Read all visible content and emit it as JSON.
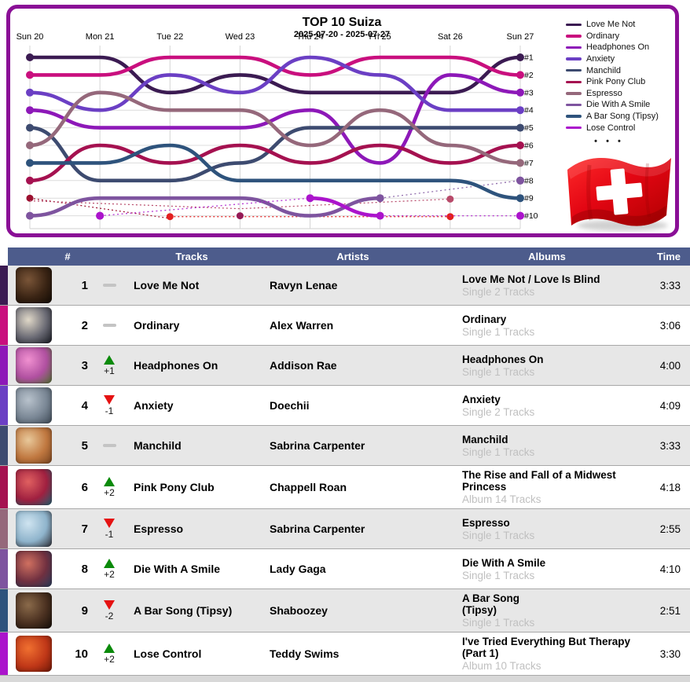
{
  "chart": {
    "title": "TOP 10 Suiza",
    "subtitle": "2025-07-20 - 2025-07-27",
    "ellipsis": "• • •",
    "panel_border_color": "#8a0f96",
    "flag": "swiss-flag"
  },
  "chart_data": {
    "type": "line",
    "variant": "bump-chart (rank over days, 1 = best, y inverted)",
    "title": "TOP 10 Suiza",
    "subtitle": "2025-07-20 - 2025-07-27",
    "x": [
      "Sun 20",
      "Mon 21",
      "Tue 22",
      "Wed 23",
      "Thu 24",
      "Fri 25",
      "Sat 26",
      "Sun 27"
    ],
    "position_labels": [
      "#1",
      "#2",
      "#3",
      "#4",
      "#5",
      "#6",
      "#7",
      "#8",
      "#9",
      "#10"
    ],
    "ylim": [
      1,
      10
    ],
    "grid": true,
    "legend_position": "top-right",
    "series": [
      {
        "name": "Love Me Not",
        "color": "#3b1b52",
        "positions": [
          1,
          1,
          3,
          2,
          3,
          3,
          3,
          1
        ]
      },
      {
        "name": "Ordinary",
        "color": "#c90f7e",
        "positions": [
          2,
          2,
          1,
          1,
          2,
          1,
          1,
          2
        ]
      },
      {
        "name": "Headphones On",
        "color": "#8d18b8",
        "positions": [
          4,
          5,
          5,
          5,
          4,
          7,
          2,
          3
        ]
      },
      {
        "name": "Anxiety",
        "color": "#6b3fc4",
        "positions": [
          3,
          4,
          2,
          3,
          1,
          2,
          4,
          4
        ]
      },
      {
        "name": "Manchild",
        "color": "#3d4b70",
        "positions": [
          5,
          8,
          8,
          7,
          5,
          5,
          5,
          5
        ]
      },
      {
        "name": "Pink Pony Club",
        "color": "#a51150",
        "positions": [
          8,
          6,
          7,
          6,
          7,
          6,
          7,
          6
        ]
      },
      {
        "name": "Espresso",
        "color": "#95687b",
        "positions": [
          6,
          3,
          4,
          4,
          6,
          4,
          6,
          7
        ]
      },
      {
        "name": "Die With A Smile",
        "color": "#7e549f",
        "positions": [
          10,
          9,
          9,
          9,
          10,
          9,
          null,
          8
        ]
      },
      {
        "name": "A Bar Song (Tipsy)",
        "color": "#2e537c",
        "positions": [
          7,
          7,
          6,
          8,
          8,
          8,
          8,
          9
        ]
      },
      {
        "name": "Lose Control",
        "color": "#ab14cc",
        "positions": [
          null,
          10,
          null,
          null,
          9,
          10,
          null,
          10
        ]
      }
    ],
    "others": [
      {
        "name": "other-exited-track",
        "color": "#9c1030",
        "points": [
          [
            0,
            9
          ],
          [
            2,
            10.15
          ]
        ],
        "dots": [
          [
            0,
            9
          ]
        ]
      },
      {
        "name": "other-track-at-10",
        "color": "#e32020",
        "points": [
          [
            2,
            10.05
          ],
          [
            6,
            10.05
          ]
        ],
        "dots": [
          [
            2,
            10.05
          ],
          [
            6,
            10.05
          ]
        ]
      },
      {
        "name": "other-track-thin",
        "color": "#b84a6a",
        "points": [
          [
            0,
            9.15
          ],
          [
            3,
            9.6
          ],
          [
            6,
            9.05
          ]
        ],
        "dots": [
          [
            6,
            9.05
          ]
        ]
      },
      {
        "name": "other-entry-marker",
        "color": "#951a56",
        "points": [],
        "dots": [
          [
            3,
            10
          ]
        ]
      }
    ]
  },
  "table": {
    "headers": [
      "#",
      "Tracks",
      "Artists",
      "Albums",
      "Time"
    ],
    "header_bg": "#4d5c8c",
    "row_alt_bg": "#e7e7e7",
    "up_color": "#0b8a0b",
    "down_color": "#e51212",
    "rows": [
      {
        "rank": "1",
        "change_dir": "same",
        "change_val": "",
        "track": "Love Me Not",
        "artist": "Ravyn Lenae",
        "album": "Love Me Not / Love Is Blind",
        "album_sub": "Single 2 Tracks",
        "time": "3:33",
        "color": "#3b1b52",
        "thumb": [
          "#7a5538",
          "#3a2414",
          "#120b05"
        ]
      },
      {
        "rank": "2",
        "change_dir": "same",
        "change_val": "",
        "track": "Ordinary",
        "artist": "Alex Warren",
        "album": "Ordinary",
        "album_sub": "Single 1 Tracks",
        "time": "3:06",
        "color": "#c90f7e",
        "thumb": [
          "#e0d8c8",
          "#6a6a74",
          "#16181f"
        ]
      },
      {
        "rank": "3",
        "change_dir": "up",
        "change_val": "+1",
        "track": "Headphones On",
        "artist": "Addison Rae",
        "album": "Headphones On",
        "album_sub": "Single 1 Tracks",
        "time": "4:00",
        "color": "#8d18b8",
        "thumb": [
          "#f090d0",
          "#b050a0",
          "#507030"
        ]
      },
      {
        "rank": "4",
        "change_dir": "down",
        "change_val": "-1",
        "track": "Anxiety",
        "artist": "Doechii",
        "album": "Anxiety",
        "album_sub": "Single 2 Tracks",
        "time": "4:09",
        "color": "#6b3fc4",
        "thumb": [
          "#b8c2cc",
          "#7a8795",
          "#3e4a56"
        ]
      },
      {
        "rank": "5",
        "change_dir": "same",
        "change_val": "",
        "track": "Manchild",
        "artist": "Sabrina Carpenter",
        "album": "Manchild",
        "album_sub": "Single 1 Tracks",
        "time": "3:33",
        "color": "#3d4b70",
        "thumb": [
          "#e8c89a",
          "#c07840",
          "#7a4520"
        ]
      },
      {
        "rank": "6",
        "change_dir": "up",
        "change_val": "+2",
        "track": "Pink Pony Club",
        "artist": "Chappell Roan",
        "album": "The Rise and Fall of a Midwest\nPrincess",
        "album_sub": "Album 14 Tracks",
        "time": "4:18",
        "color": "#a51150",
        "thumb": [
          "#e06060",
          "#a02040",
          "#206070"
        ]
      },
      {
        "rank": "7",
        "change_dir": "down",
        "change_val": "-1",
        "track": "Espresso",
        "artist": "Sabrina Carpenter",
        "album": "Espresso",
        "album_sub": "Single 1 Tracks",
        "time": "2:55",
        "color": "#95687b",
        "thumb": [
          "#cfe4f0",
          "#8fb4cc",
          "#303038"
        ]
      },
      {
        "rank": "8",
        "change_dir": "up",
        "change_val": "+2",
        "track": "Die With A Smile",
        "artist": "Lady Gaga",
        "album": "Die With A Smile",
        "album_sub": "Single 1 Tracks",
        "time": "4:10",
        "color": "#7e549f",
        "thumb": [
          "#d07060",
          "#703040",
          "#283c5c"
        ]
      },
      {
        "rank": "9",
        "change_dir": "down",
        "change_val": "-2",
        "track": "A Bar Song (Tipsy)",
        "artist": "Shaboozey",
        "album": "A Bar Song\n(Tipsy)",
        "album_sub": "Single 1 Tracks",
        "time": "2:51",
        "color": "#2e537c",
        "thumb": [
          "#8a6a4a",
          "#4a3020",
          "#150e08"
        ]
      },
      {
        "rank": "10",
        "change_dir": "up",
        "change_val": "+2",
        "track": "Lose Control",
        "artist": "Teddy Swims",
        "album": "I've Tried Everything But Therapy\n(Part 1)",
        "album_sub": "Album 10 Tracks",
        "time": "3:30",
        "color": "#ab14cc",
        "thumb": [
          "#f07030",
          "#c03818",
          "#701808"
        ]
      }
    ]
  }
}
